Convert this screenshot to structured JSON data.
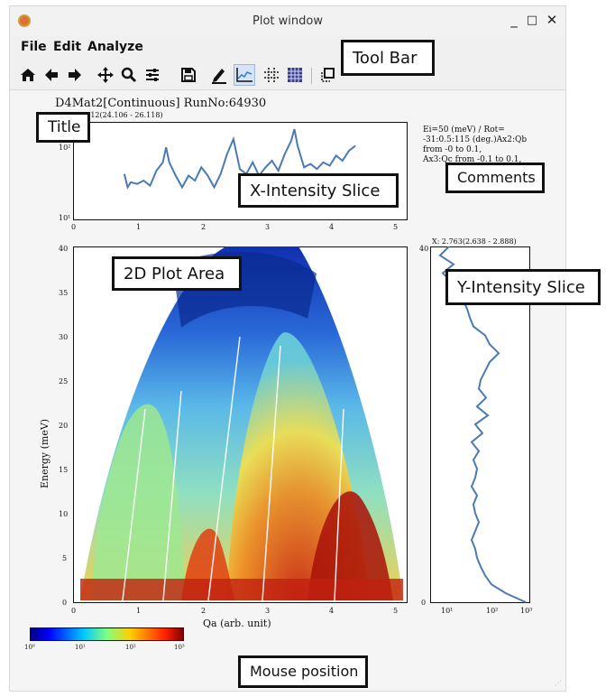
{
  "window": {
    "title": "Plot window",
    "controls": [
      "_",
      "□",
      "✕"
    ]
  },
  "menu": [
    "File",
    "Edit",
    "Analyze"
  ],
  "toolbar": {
    "icons": [
      "home-icon",
      "back-arrow-icon",
      "forward-arrow-icon",
      "pan-icon",
      "zoom-icon",
      "configure-subplots-icon",
      "save-icon",
      "pencil-icon",
      "line-slice-icon",
      "grid-cross-icon",
      "grid-icon",
      "copy-icon"
    ]
  },
  "plot": {
    "title": "D4Mat2[Continuous] RunNo:64930",
    "x_slice_label": "Y: 25.612(24.106 - 26.118)",
    "y_slice_label": "X: 2.763(2.638 - 2.888)",
    "comments": [
      "Ei=50 (meV) / Rot=",
      "-31:0.5:115 (deg.)Ax2:Qb",
      "from -0 to 0.1,",
      "Ax3:Qc  from -0.1 to 0.1,"
    ],
    "xlabel": "Qa (arb. unit)",
    "ylabel": "Energy (meV)",
    "x_ticks": [
      "0",
      "1",
      "2",
      "3",
      "4",
      "5"
    ],
    "y_ticks": [
      "0",
      "5",
      "10",
      "15",
      "20",
      "25",
      "30",
      "35",
      "40"
    ],
    "xslice_y_ticks": [
      "10²",
      "10¹"
    ],
    "yslice_x_ticks": [
      "10¹",
      "10²",
      "10³"
    ],
    "colorbar_ticks": [
      "10⁰",
      "10¹",
      "10²",
      "10³"
    ]
  },
  "callouts": {
    "toolbar": "Tool Bar",
    "title": "Title",
    "comments": "Comments",
    "x_slice": "X-Intensity Slice",
    "plot_area": "2D Plot Area",
    "y_slice": "Y-Intensity Slice",
    "mouse": "Mouse position"
  },
  "colors": {
    "slice_line": "#4a7ab5",
    "callout_border": "#111111"
  },
  "chart_data": [
    {
      "type": "line",
      "xlim": [
        0,
        5.2
      ],
      "ylog": true,
      "x": [
        0.8,
        0.85,
        0.9,
        1.0,
        1.1,
        1.2,
        1.3,
        1.4,
        1.45,
        1.5,
        1.6,
        1.7,
        1.8,
        1.9,
        2.0,
        2.1,
        2.2,
        2.3,
        2.4,
        2.5,
        2.55,
        2.6,
        2.7,
        2.8,
        2.9,
        3.0,
        3.1,
        3.2,
        3.3,
        3.4,
        3.45,
        3.5,
        3.6,
        3.7,
        3.8,
        3.9,
        4.0,
        4.1,
        4.2,
        4.3,
        4.4
      ],
      "y_rel": [
        0.46,
        0.3,
        0.36,
        0.34,
        0.38,
        0.32,
        0.5,
        0.6,
        0.78,
        0.6,
        0.44,
        0.3,
        0.44,
        0.38,
        0.54,
        0.44,
        0.3,
        0.46,
        0.7,
        0.88,
        0.7,
        0.52,
        0.46,
        0.6,
        0.44,
        0.54,
        0.62,
        0.5,
        0.7,
        0.86,
        1.0,
        0.8,
        0.54,
        0.58,
        0.52,
        0.6,
        0.56,
        0.68,
        0.62,
        0.74,
        0.8
      ]
    },
    {
      "type": "line",
      "ylim": [
        0,
        40
      ],
      "xlog": true,
      "y": [
        40,
        39,
        38,
        37,
        36,
        35,
        34,
        33,
        32,
        31,
        30,
        29,
        28,
        27,
        26,
        25,
        24,
        23,
        22,
        21,
        20,
        19,
        18,
        17,
        16,
        15,
        14,
        13,
        12,
        11,
        10,
        9,
        8,
        7,
        6,
        5,
        4,
        3,
        2,
        1,
        0
      ],
      "x_rel": [
        0.15,
        0.05,
        0.2,
        0.08,
        0.18,
        0.22,
        0.3,
        0.35,
        0.38,
        0.42,
        0.55,
        0.6,
        0.7,
        0.6,
        0.55,
        0.5,
        0.48,
        0.56,
        0.46,
        0.58,
        0.44,
        0.52,
        0.4,
        0.48,
        0.42,
        0.46,
        0.44,
        0.4,
        0.46,
        0.42,
        0.44,
        0.48,
        0.44,
        0.4,
        0.44,
        0.46,
        0.5,
        0.55,
        0.62,
        0.78,
        1.0
      ]
    }
  ]
}
